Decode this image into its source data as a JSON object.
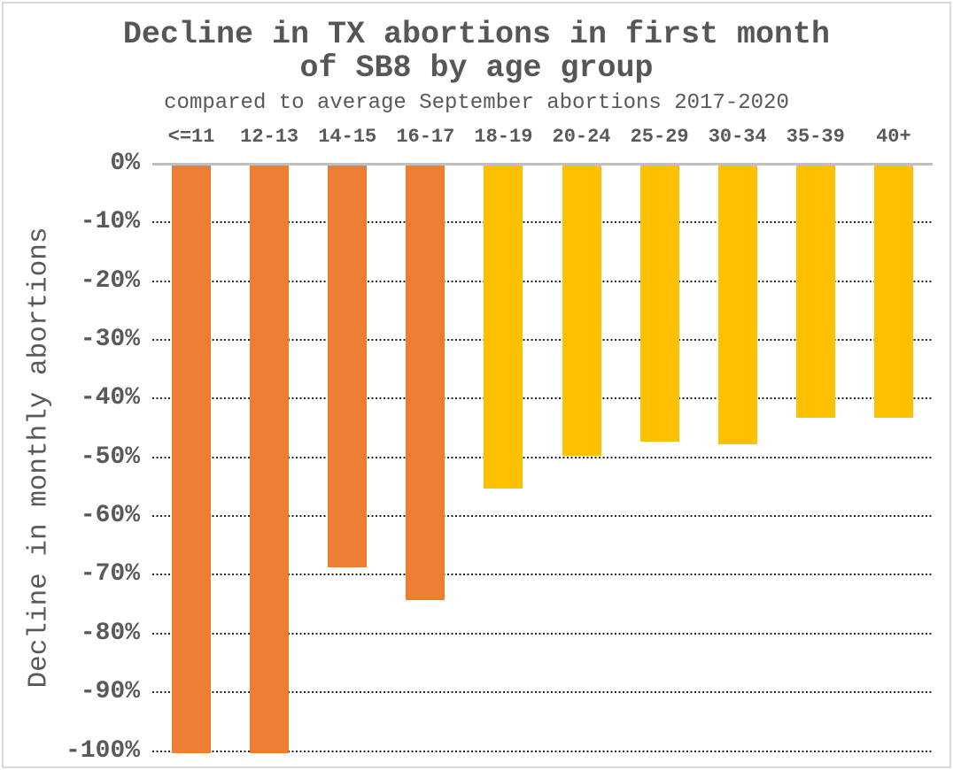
{
  "title": {
    "line1": "Decline in TX abortions in first month",
    "line2": "of SB8 by age group"
  },
  "subtitle": "compared to average September abortions 2017-2020",
  "ylabel": "Decline in monthly abortions",
  "y_ticks": [
    "0%",
    "-10%",
    "-20%",
    "-30%",
    "-40%",
    "-50%",
    "-60%",
    "-70%",
    "-80%",
    "-90%",
    "-100%"
  ],
  "colors": {
    "bar_orange": "#ED7D31",
    "bar_gold": "#FFC000",
    "text_gray": "#595959",
    "axis_line": "#BFBFBF",
    "gridline": "#262626",
    "frame_border": "#DADADA"
  },
  "chart_data": {
    "type": "bar",
    "title": "Decline in TX abortions in first month of SB8 by age group",
    "subtitle": "compared to average September abortions 2017-2020",
    "categories": [
      "<=11",
      "12-13",
      "14-15",
      "16-17",
      "18-19",
      "20-24",
      "25-29",
      "30-34",
      "35-39",
      "40+"
    ],
    "values": [
      -100,
      -100,
      -68.5,
      -74,
      -55,
      -49.5,
      -47,
      -47.5,
      -43,
      -43
    ],
    "bar_colors": [
      "#ED7D31",
      "#ED7D31",
      "#ED7D31",
      "#ED7D31",
      "#FFC000",
      "#FFC000",
      "#FFC000",
      "#FFC000",
      "#FFC000",
      "#FFC000"
    ],
    "xlabel": "",
    "ylabel": "Decline in monthly abortions",
    "ylim": [
      -100,
      0
    ],
    "y_tick_step": 10,
    "y_tick_format": "percent",
    "category_axis_position": "top",
    "grid": "horizontal dotted",
    "legend": "none"
  }
}
